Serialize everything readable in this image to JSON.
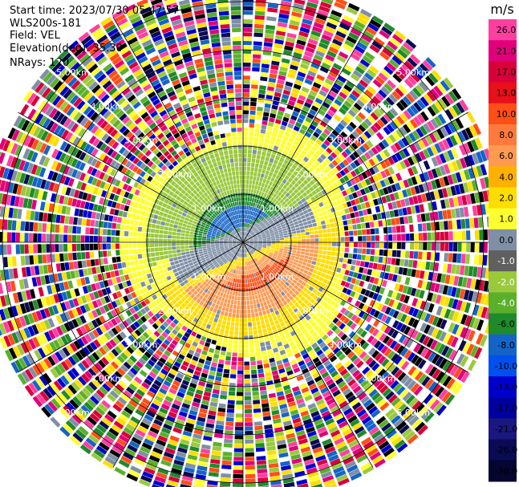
{
  "header": {
    "start_time": "Start time: 2023/07/30 05:47:57",
    "instrument": "WLS200s-181",
    "field": "Field: VEL",
    "elevation": "Elevation(deg): 35.30",
    "nrays": "NRays: 120"
  },
  "chart_data": {
    "type": "heatmap",
    "projection": "polar-ppi",
    "units": "m/s",
    "nrays": 120,
    "range_rings_km": [
      1,
      2,
      3,
      4,
      5
    ],
    "ring_labels": [
      "1.00km",
      "2.00km",
      "3.00km",
      "4.00km",
      "5.00km"
    ],
    "max_range_km": 5.4,
    "colorbar": {
      "label": "m/s",
      "ticks": [
        "26.0",
        "21.0",
        "17.0",
        "13.0",
        "10.0",
        "8.0",
        "6.0",
        "4.0",
        "2.0",
        "1.0",
        "0.0",
        "-1.0",
        "-2.0",
        "-4.0",
        "-6.0",
        "-8.0",
        "-10.0",
        "-13.0",
        "-17.0",
        "-21.0",
        "-26.0",
        "-30.0"
      ],
      "colors": [
        "#ff3fa0",
        "#e0007a",
        "#d8003a",
        "#e8101a",
        "#ff4e16",
        "#ff7a3c",
        "#ff9a50",
        "#ffb000",
        "#ffdd00",
        "#ffff30",
        "#7f8fa5",
        "#606060",
        "#9bc93c",
        "#5ab02a",
        "#1f8a2a",
        "#1464c8",
        "#0050f0",
        "#0000cc",
        "#0000a0",
        "#1a1880",
        "#0a0a55",
        "#050530"
      ]
    },
    "noise_palette": [
      "#ff3fa0",
      "#e0007a",
      "#d8003a",
      "#ff4e16",
      "#ffdd00",
      "#ffff30",
      "#9bc93c",
      "#5ab02a",
      "#1f8a2a",
      "#1464c8",
      "#0000cc",
      "#0a0a55",
      "#7f8fa5",
      "#ffffff",
      "#000000"
    ]
  }
}
